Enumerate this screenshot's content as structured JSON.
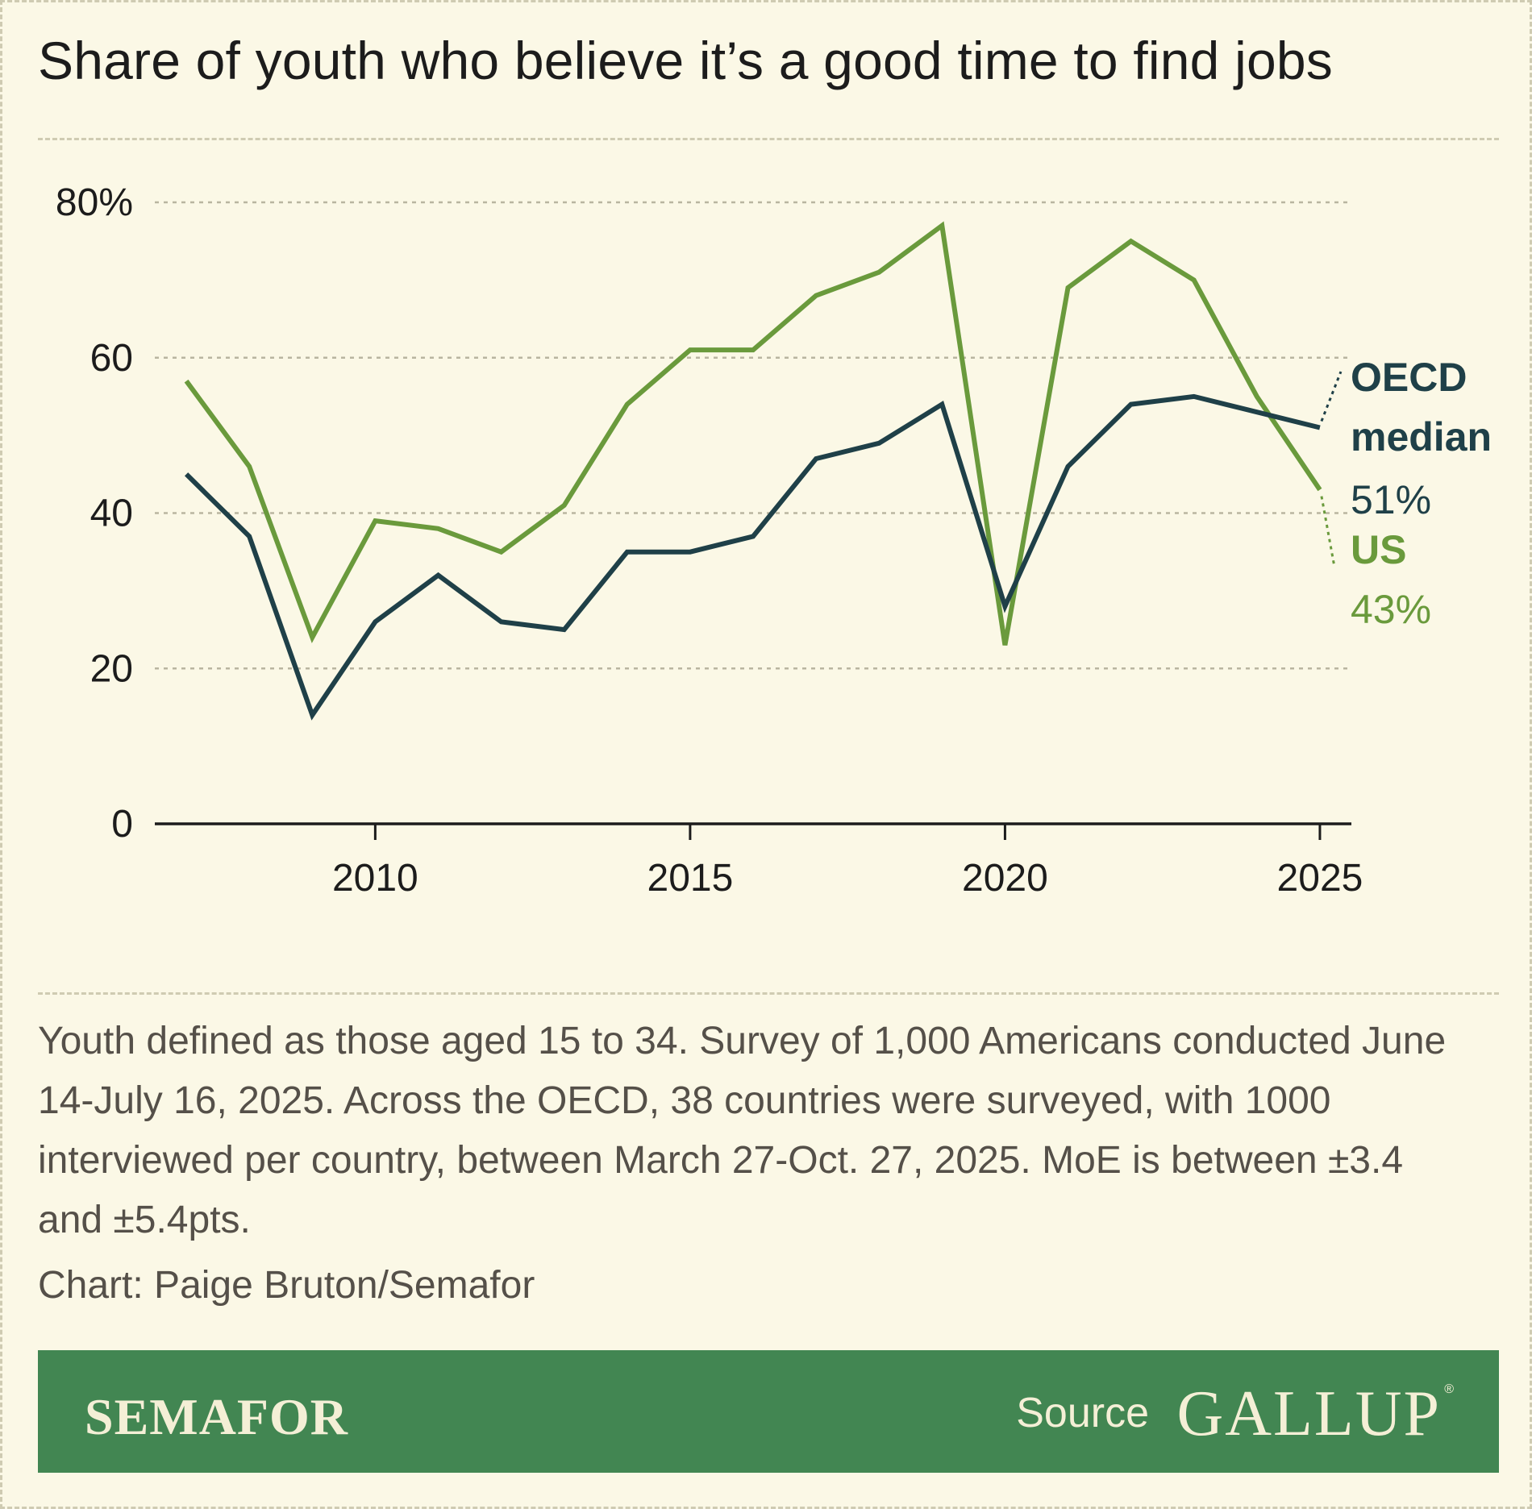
{
  "title": "Share of youth who believe it’s a good time to find jobs",
  "chart_data": {
    "type": "line",
    "x": [
      2007,
      2008,
      2009,
      2010,
      2011,
      2012,
      2013,
      2014,
      2015,
      2016,
      2017,
      2018,
      2019,
      2020,
      2021,
      2022,
      2023,
      2024,
      2025
    ],
    "series": [
      {
        "name": "US",
        "color": "#6a9a3c",
        "values": [
          57,
          46,
          24,
          39,
          38,
          35,
          41,
          54,
          61,
          61,
          68,
          71,
          77,
          23,
          69,
          75,
          70,
          55,
          43
        ],
        "label_name": "US",
        "label_value": "43%"
      },
      {
        "name": "OECD median",
        "color": "#1f4048",
        "values": [
          45,
          37,
          14,
          26,
          32,
          26,
          25,
          35,
          35,
          37,
          47,
          49,
          54,
          28,
          46,
          54,
          55,
          53,
          51
        ],
        "label_name_lines": [
          "OECD",
          "median"
        ],
        "label_value": "51%"
      }
    ],
    "y_ticks": [
      0,
      20,
      40,
      60,
      80
    ],
    "y_tick_labels": [
      "0",
      "20",
      "40",
      "60",
      "80%"
    ],
    "x_ticks": [
      2010,
      2015,
      2020,
      2025
    ],
    "x_tick_labels": [
      "2010",
      "2015",
      "2020",
      "2025"
    ],
    "xlim": [
      2006.5,
      2025.5
    ],
    "ylim": [
      0,
      80
    ],
    "grid": "horizontal dashed",
    "legend": "direct labels at right"
  },
  "notes": "Youth defined as those aged 15 to 34. Survey of 1,000 Americans conducted June 14-July 16, 2025. Across the OECD, 38 countries were surveyed, with 1000 interviewed per country, between March 27-Oct. 27, 2025. MoE is between ±3.4 and ±5.4pts.",
  "credit": "Chart: Paige Bruton/Semafor",
  "footer": {
    "brand": "SEMAFOR",
    "source_label": "Source",
    "source_logo": "GALLUP",
    "registered_mark": "®",
    "background": "#428652"
  }
}
